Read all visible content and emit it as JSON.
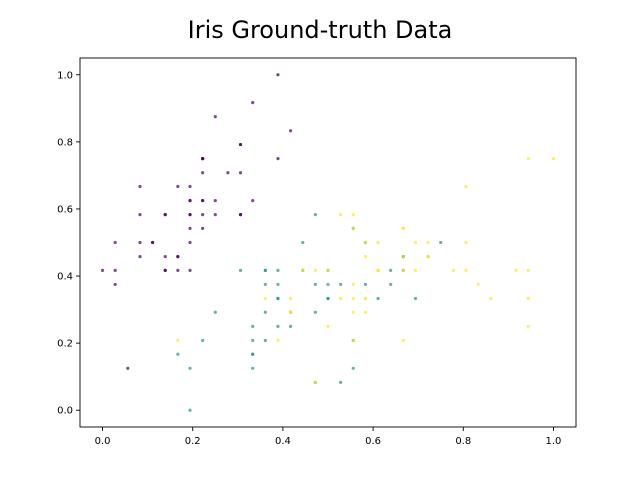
{
  "chart_data": {
    "type": "scatter",
    "title": "Iris Ground-truth Data",
    "xlabel": "",
    "ylabel": "",
    "xlim": [
      -0.05,
      1.05
    ],
    "ylim": [
      -0.05,
      1.05
    ],
    "xticks": [
      "0.0",
      "0.2",
      "0.4",
      "0.6",
      "0.8",
      "1.0"
    ],
    "yticks": [
      "0.0",
      "0.2",
      "0.4",
      "0.6",
      "0.8",
      "1.0"
    ],
    "grid": false,
    "legend": "none",
    "colors": {
      "setosa": "#440154",
      "versicolor": "#21918c",
      "virginica": "#fde725"
    },
    "series": [
      {
        "color_key": "setosa",
        "points": [
          [
            0.222,
            0.625
          ],
          [
            0.167,
            0.417
          ],
          [
            0.111,
            0.5
          ],
          [
            0.083,
            0.458
          ],
          [
            0.194,
            0.667
          ],
          [
            0.306,
            0.792
          ],
          [
            0.083,
            0.583
          ],
          [
            0.194,
            0.583
          ],
          [
            0.028,
            0.375
          ],
          [
            0.167,
            0.458
          ],
          [
            0.306,
            0.708
          ],
          [
            0.139,
            0.583
          ],
          [
            0.139,
            0.417
          ],
          [
            0.0,
            0.417
          ],
          [
            0.417,
            0.833
          ],
          [
            0.389,
            1.0
          ],
          [
            0.306,
            0.792
          ],
          [
            0.222,
            0.625
          ],
          [
            0.389,
            0.75
          ],
          [
            0.222,
            0.75
          ],
          [
            0.306,
            0.583
          ],
          [
            0.222,
            0.708
          ],
          [
            0.083,
            0.667
          ],
          [
            0.222,
            0.542
          ],
          [
            0.139,
            0.583
          ],
          [
            0.194,
            0.417
          ],
          [
            0.194,
            0.583
          ],
          [
            0.25,
            0.625
          ],
          [
            0.25,
            0.583
          ],
          [
            0.111,
            0.5
          ],
          [
            0.139,
            0.458
          ],
          [
            0.306,
            0.583
          ],
          [
            0.25,
            0.875
          ],
          [
            0.333,
            0.917
          ],
          [
            0.167,
            0.458
          ],
          [
            0.194,
            0.5
          ],
          [
            0.333,
            0.625
          ],
          [
            0.167,
            0.667
          ],
          [
            0.028,
            0.417
          ],
          [
            0.222,
            0.583
          ],
          [
            0.194,
            0.625
          ],
          [
            0.056,
            0.125
          ],
          [
            0.028,
            0.5
          ],
          [
            0.194,
            0.625
          ],
          [
            0.222,
            0.75
          ],
          [
            0.139,
            0.417
          ],
          [
            0.222,
            0.75
          ],
          [
            0.083,
            0.5
          ],
          [
            0.278,
            0.708
          ],
          [
            0.194,
            0.542
          ]
        ]
      },
      {
        "color_key": "versicolor",
        "points": [
          [
            0.75,
            0.5
          ],
          [
            0.583,
            0.5
          ],
          [
            0.722,
            0.458
          ],
          [
            0.333,
            0.125
          ],
          [
            0.611,
            0.333
          ],
          [
            0.389,
            0.333
          ],
          [
            0.556,
            0.542
          ],
          [
            0.167,
            0.167
          ],
          [
            0.639,
            0.375
          ],
          [
            0.25,
            0.292
          ],
          [
            0.194,
            0.0
          ],
          [
            0.444,
            0.417
          ],
          [
            0.472,
            0.083
          ],
          [
            0.5,
            0.375
          ],
          [
            0.361,
            0.375
          ],
          [
            0.667,
            0.458
          ],
          [
            0.361,
            0.417
          ],
          [
            0.417,
            0.292
          ],
          [
            0.528,
            0.083
          ],
          [
            0.361,
            0.208
          ],
          [
            0.444,
            0.5
          ],
          [
            0.5,
            0.333
          ],
          [
            0.556,
            0.208
          ],
          [
            0.5,
            0.333
          ],
          [
            0.583,
            0.375
          ],
          [
            0.639,
            0.417
          ],
          [
            0.694,
            0.333
          ],
          [
            0.667,
            0.417
          ],
          [
            0.472,
            0.375
          ],
          [
            0.389,
            0.25
          ],
          [
            0.333,
            0.167
          ],
          [
            0.333,
            0.167
          ],
          [
            0.417,
            0.292
          ],
          [
            0.472,
            0.292
          ],
          [
            0.306,
            0.417
          ],
          [
            0.472,
            0.583
          ],
          [
            0.667,
            0.458
          ],
          [
            0.556,
            0.125
          ],
          [
            0.361,
            0.417
          ],
          [
            0.333,
            0.208
          ],
          [
            0.333,
            0.25
          ],
          [
            0.5,
            0.417
          ],
          [
            0.417,
            0.25
          ],
          [
            0.194,
            0.125
          ],
          [
            0.361,
            0.292
          ],
          [
            0.389,
            0.417
          ],
          [
            0.389,
            0.375
          ],
          [
            0.528,
            0.375
          ],
          [
            0.222,
            0.208
          ],
          [
            0.389,
            0.333
          ]
        ]
      },
      {
        "color_key": "virginica",
        "points": [
          [
            0.556,
            0.542
          ],
          [
            0.417,
            0.292
          ],
          [
            0.778,
            0.417
          ],
          [
            0.556,
            0.375
          ],
          [
            0.611,
            0.417
          ],
          [
            0.917,
            0.417
          ],
          [
            0.167,
            0.208
          ],
          [
            0.833,
            0.375
          ],
          [
            0.667,
            0.208
          ],
          [
            0.806,
            0.667
          ],
          [
            0.611,
            0.5
          ],
          [
            0.583,
            0.292
          ],
          [
            0.694,
            0.417
          ],
          [
            0.389,
            0.208
          ],
          [
            0.417,
            0.333
          ],
          [
            0.583,
            0.5
          ],
          [
            0.611,
            0.417
          ],
          [
            0.944,
            0.75
          ],
          [
            0.944,
            0.25
          ],
          [
            0.472,
            0.083
          ],
          [
            0.722,
            0.5
          ],
          [
            0.361,
            0.333
          ],
          [
            0.944,
            0.333
          ],
          [
            0.556,
            0.292
          ],
          [
            0.667,
            0.542
          ],
          [
            0.806,
            0.5
          ],
          [
            0.528,
            0.333
          ],
          [
            0.5,
            0.417
          ],
          [
            0.583,
            0.333
          ],
          [
            0.806,
            0.417
          ],
          [
            0.861,
            0.333
          ],
          [
            1.0,
            0.75
          ],
          [
            0.583,
            0.333
          ],
          [
            0.556,
            0.333
          ],
          [
            0.5,
            0.25
          ],
          [
            0.944,
            0.417
          ],
          [
            0.556,
            0.583
          ],
          [
            0.583,
            0.458
          ],
          [
            0.472,
            0.417
          ],
          [
            0.722,
            0.458
          ],
          [
            0.667,
            0.458
          ],
          [
            0.722,
            0.458
          ],
          [
            0.417,
            0.292
          ],
          [
            0.694,
            0.5
          ],
          [
            0.667,
            0.542
          ],
          [
            0.667,
            0.417
          ],
          [
            0.556,
            0.208
          ],
          [
            0.611,
            0.417
          ],
          [
            0.528,
            0.583
          ],
          [
            0.444,
            0.417
          ]
        ]
      }
    ]
  }
}
